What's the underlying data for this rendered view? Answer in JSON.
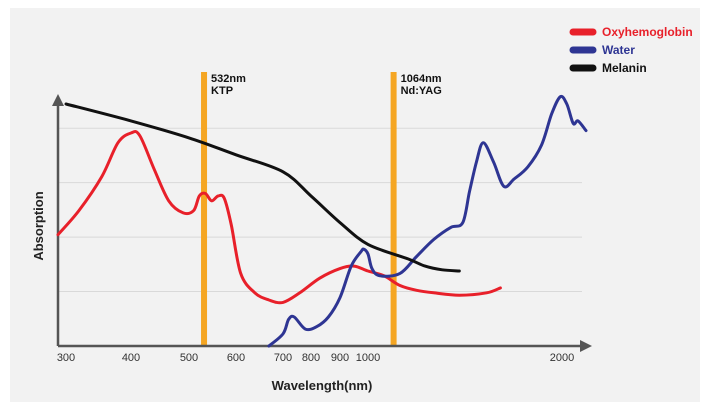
{
  "chart_data": {
    "type": "line",
    "xlabel": "Wavelength(nm)",
    "ylabel": "Absorption",
    "x_ticks": [
      {
        "label": "300",
        "value": 300
      },
      {
        "label": "400",
        "value": 400
      },
      {
        "label": "500",
        "value": 500
      },
      {
        "label": "600",
        "value": 600
      },
      {
        "label": "700",
        "value": 700
      },
      {
        "label": "800",
        "value": 800
      },
      {
        "label": "900",
        "value": 900
      },
      {
        "label": "1000",
        "value": 1000
      },
      {
        "label": "2000",
        "value": 2000
      }
    ],
    "x_scale": "piecewise",
    "xlim": [
      280,
      2200
    ],
    "ylim": [
      0,
      1
    ],
    "grid": true,
    "legend_position": "top-right",
    "series": [
      {
        "name": "Oxyhemoglobin",
        "color": "#e8202a",
        "points": [
          [
            280,
            0.46
          ],
          [
            320,
            0.56
          ],
          [
            355,
            0.7
          ],
          [
            380,
            0.84
          ],
          [
            400,
            0.88
          ],
          [
            415,
            0.87
          ],
          [
            440,
            0.73
          ],
          [
            465,
            0.6
          ],
          [
            490,
            0.55
          ],
          [
            510,
            0.56
          ],
          [
            522,
            0.62
          ],
          [
            535,
            0.63
          ],
          [
            548,
            0.6
          ],
          [
            562,
            0.62
          ],
          [
            575,
            0.61
          ],
          [
            590,
            0.5
          ],
          [
            610,
            0.3
          ],
          [
            640,
            0.22
          ],
          [
            670,
            0.19
          ],
          [
            700,
            0.18
          ],
          [
            760,
            0.22
          ],
          [
            830,
            0.28
          ],
          [
            900,
            0.32
          ],
          [
            950,
            0.33
          ],
          [
            1000,
            0.31
          ],
          [
            1040,
            0.29
          ],
          [
            1080,
            0.25
          ],
          [
            1150,
            0.23
          ],
          [
            1250,
            0.22
          ],
          [
            1400,
            0.21
          ],
          [
            1560,
            0.22
          ],
          [
            1640,
            0.24
          ]
        ]
      },
      {
        "name": "Water",
        "color": "#2e3593",
        "points": [
          [
            670,
            0.0
          ],
          [
            700,
            0.05
          ],
          [
            720,
            0.11
          ],
          [
            740,
            0.12
          ],
          [
            780,
            0.07
          ],
          [
            820,
            0.08
          ],
          [
            860,
            0.12
          ],
          [
            900,
            0.2
          ],
          [
            940,
            0.33
          ],
          [
            975,
            0.39
          ],
          [
            985,
            0.4
          ],
          [
            1000,
            0.38
          ],
          [
            1010,
            0.32
          ],
          [
            1030,
            0.29
          ],
          [
            1080,
            0.3
          ],
          [
            1150,
            0.37
          ],
          [
            1250,
            0.44
          ],
          [
            1350,
            0.49
          ],
          [
            1420,
            0.51
          ],
          [
            1460,
            0.64
          ],
          [
            1500,
            0.76
          ],
          [
            1540,
            0.84
          ],
          [
            1600,
            0.76
          ],
          [
            1660,
            0.66
          ],
          [
            1720,
            0.69
          ],
          [
            1800,
            0.74
          ],
          [
            1880,
            0.83
          ],
          [
            1940,
            0.96
          ],
          [
            1990,
            1.03
          ],
          [
            2030,
            1.0
          ],
          [
            2070,
            0.92
          ],
          [
            2100,
            0.93
          ],
          [
            2150,
            0.89
          ]
        ]
      },
      {
        "name": "Melanin",
        "color": "#111111",
        "points": [
          [
            300,
            1.0
          ],
          [
            400,
            0.93
          ],
          [
            500,
            0.86
          ],
          [
            600,
            0.79
          ],
          [
            700,
            0.72
          ],
          [
            800,
            0.62
          ],
          [
            900,
            0.51
          ],
          [
            1000,
            0.42
          ],
          [
            1100,
            0.36
          ],
          [
            1200,
            0.33
          ],
          [
            1300,
            0.315
          ],
          [
            1400,
            0.31
          ]
        ]
      }
    ],
    "annotations": [
      {
        "x": 532,
        "line1": "532nm",
        "line2": "KTP",
        "color": "#f5a623"
      },
      {
        "x": 1064,
        "line1": "1064nm",
        "line2": "Nd:YAG",
        "color": "#f5a623"
      }
    ]
  }
}
